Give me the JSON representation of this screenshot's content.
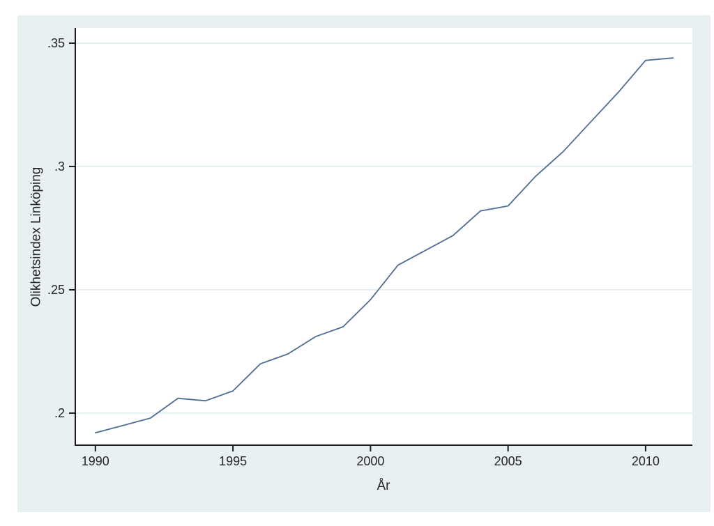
{
  "chart_data": {
    "type": "line",
    "title": "",
    "xlabel": "År",
    "ylabel": "Olikhetsindex Linköping",
    "x": [
      1990,
      1991,
      1992,
      1993,
      1994,
      1995,
      1996,
      1997,
      1998,
      1999,
      2000,
      2001,
      2002,
      2003,
      2004,
      2005,
      2006,
      2007,
      2008,
      2009,
      2010,
      2011
    ],
    "series": [
      {
        "name": "Olikhetsindex Linköping",
        "values": [
          0.192,
          0.195,
          0.198,
          0.206,
          0.205,
          0.209,
          0.22,
          0.224,
          0.231,
          0.235,
          0.246,
          0.26,
          0.266,
          0.272,
          0.282,
          0.284,
          0.296,
          0.306,
          0.318,
          0.33,
          0.343,
          0.344
        ]
      }
    ],
    "xticks": {
      "values": [
        1990,
        1995,
        2000,
        2005,
        2010
      ],
      "labels": [
        "1990",
        "1995",
        "2000",
        "2005",
        "2010"
      ]
    },
    "yticks": {
      "values": [
        0.2,
        0.25,
        0.3,
        0.35
      ],
      "labels": [
        ".2",
        ".25",
        ".3",
        ".35"
      ]
    },
    "xlim": [
      1989.27,
      2011.7
    ],
    "ylim": [
      0.187,
      0.3562
    ],
    "grid": "horizontal-only",
    "legend": "none",
    "colors": {
      "line": "#4f6d93",
      "canvas_bg": "#e9f0f1",
      "plot_bg": "#ffffff",
      "grid": "#e2edef",
      "axis": "#1a1a1a",
      "text": "#262626"
    }
  }
}
